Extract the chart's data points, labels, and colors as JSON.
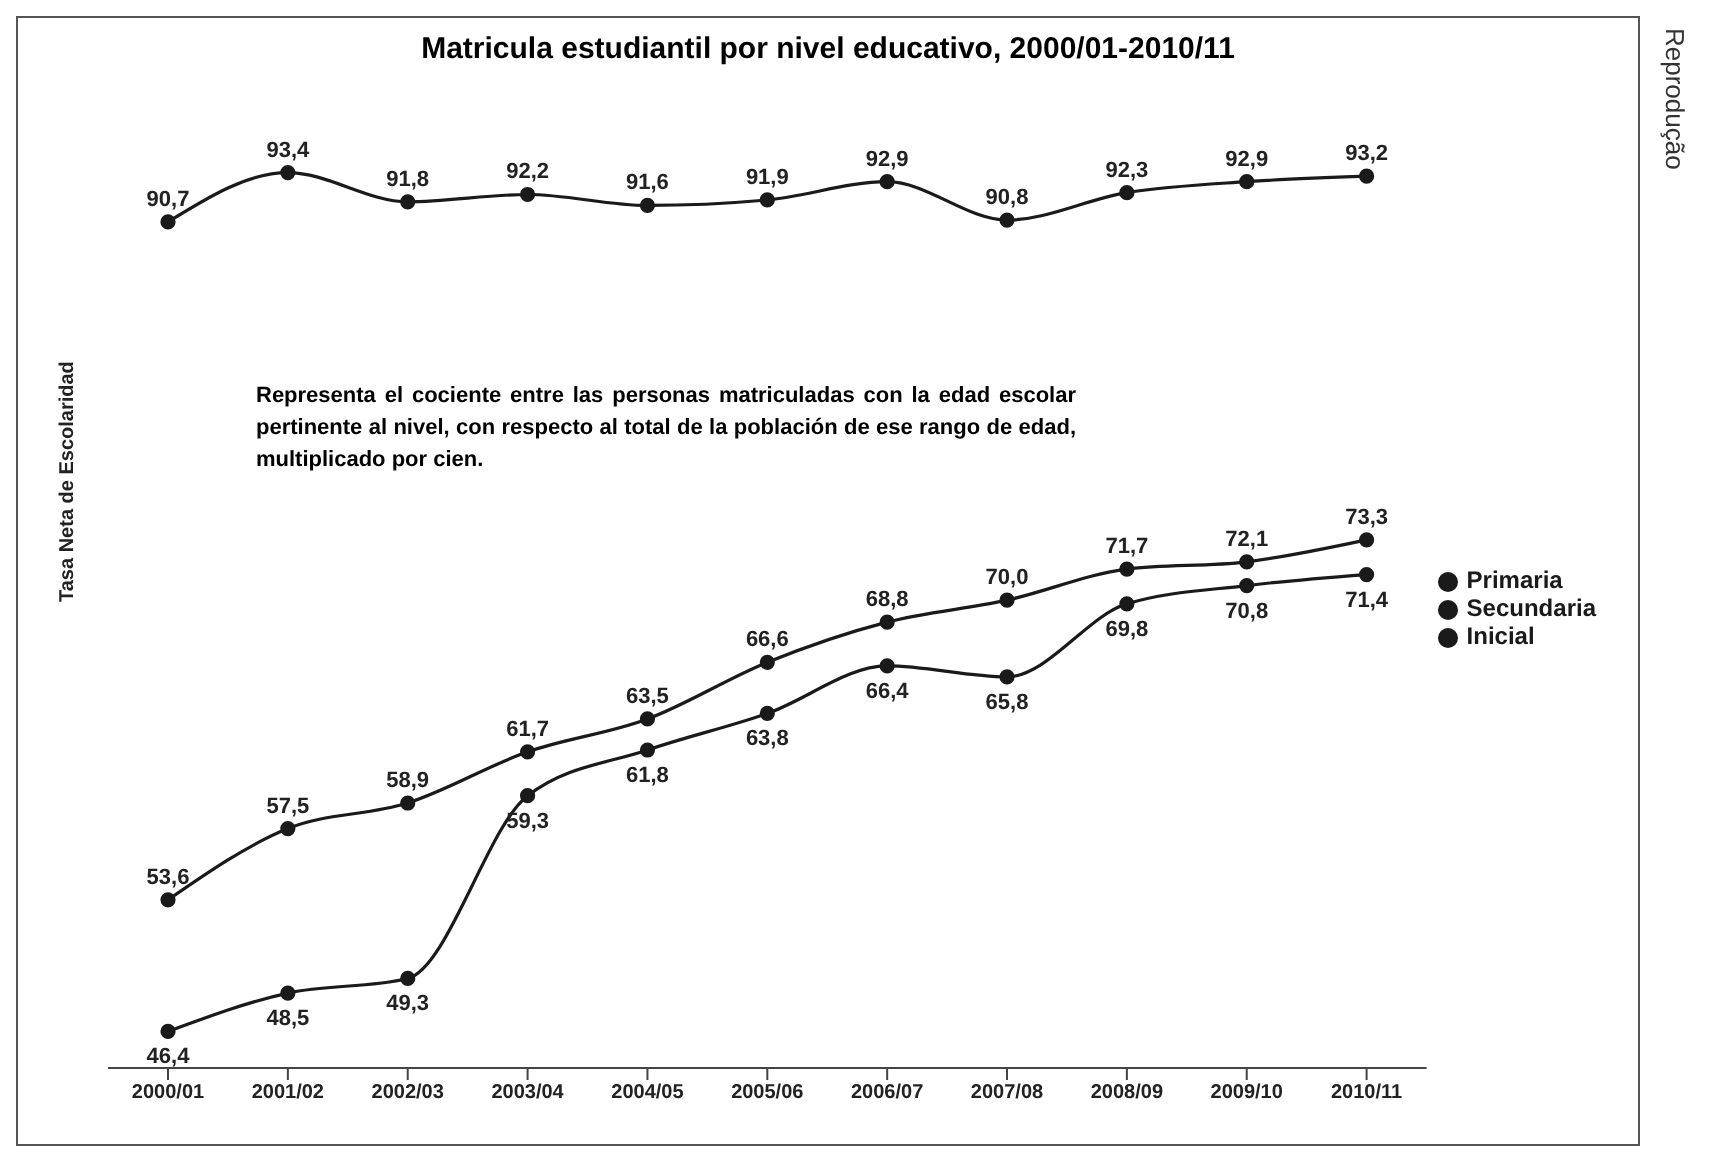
{
  "chart_data": {
    "type": "line",
    "title": "Matricula estudiantil por nivel educativo, 2000/01-2010/11",
    "ylabel": "Tasa Neta de Escolaridad",
    "categories": [
      "2000/01",
      "2001/02",
      "2002/03",
      "2003/04",
      "2004/05",
      "2005/06",
      "2006/07",
      "2007/08",
      "2008/09",
      "2009/10",
      "2010/11"
    ],
    "series": [
      {
        "name": "Primaria",
        "color": "#1a1a1a",
        "values": [
          90.7,
          93.4,
          91.8,
          92.2,
          91.6,
          91.9,
          92.9,
          90.8,
          92.3,
          92.9,
          93.2
        ],
        "value_labels": [
          "90,7",
          "93,4",
          "91,8",
          "92,2",
          "91,6",
          "91,9",
          "92,9",
          "90,8",
          "92,3",
          "92,9",
          "93,2"
        ]
      },
      {
        "name": "Secundaria",
        "color": "#1a1a1a",
        "values": [
          53.6,
          57.5,
          58.9,
          61.7,
          63.5,
          66.6,
          68.8,
          70.0,
          71.7,
          72.1,
          73.3
        ],
        "value_labels": [
          "53,6",
          "57,5",
          "58,9",
          "61,7",
          "63,5",
          "66,6",
          "68,8",
          "70,0",
          "71,7",
          "72,1",
          "73,3"
        ]
      },
      {
        "name": "Inicial",
        "color": "#1a1a1a",
        "values": [
          46.4,
          48.5,
          49.3,
          59.3,
          61.8,
          63.8,
          66.4,
          65.8,
          69.8,
          70.8,
          71.4
        ],
        "value_labels": [
          "46,4",
          "48,5",
          "49,3",
          "59,3",
          "61,8",
          "63,8",
          "66,4",
          "65,8",
          "69,8",
          "70,8",
          "71,4"
        ]
      }
    ],
    "tick_labels": "x",
    "legend": "right",
    "marker": "circle",
    "line_style": "solid",
    "annotations": [
      "Representa el cociente entre las personas matriculadas con la edad escolar pertinente al nivel, con respecto al total de la población de ese rango de edad, multiplicado por cien.",
      "Reprodução"
    ]
  }
}
